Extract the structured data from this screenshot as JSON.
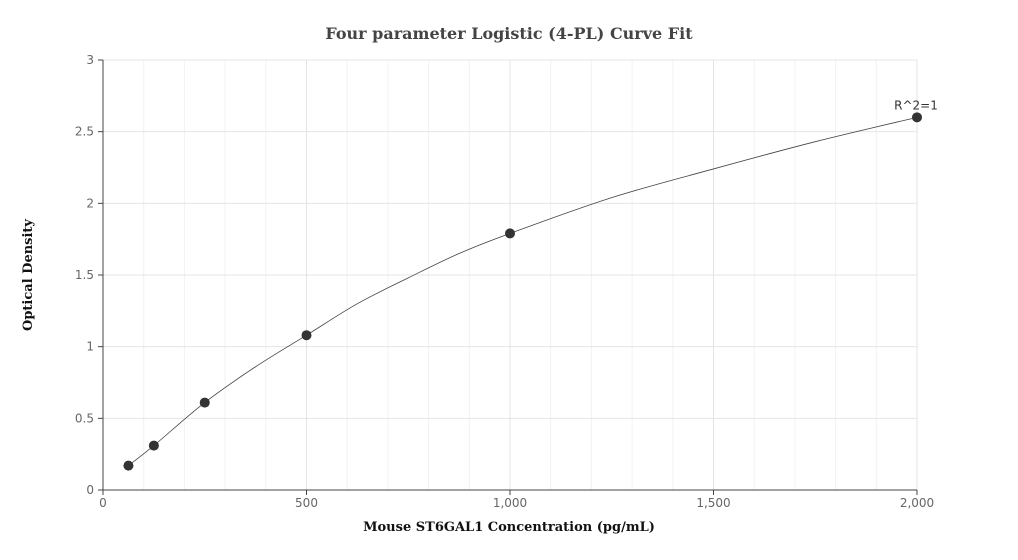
{
  "chart_data": {
    "type": "scatter",
    "title": "Four parameter Logistic (4-PL) Curve Fit",
    "xlabel": "Mouse ST6GAL1 Concentration (pg/mL)",
    "ylabel": "Optical Density",
    "xlim": [
      0,
      2000
    ],
    "ylim": [
      0,
      3
    ],
    "x_ticks": [
      0,
      500,
      1000,
      1500,
      2000
    ],
    "x_tick_labels": [
      "0",
      "500",
      "1,000",
      "1,500",
      "2,000"
    ],
    "y_ticks": [
      0,
      0.5,
      1,
      1.5,
      2,
      2.5,
      3
    ],
    "y_tick_labels": [
      "0",
      "0.5",
      "1",
      "1.5",
      "2",
      "2.5",
      "3"
    ],
    "grid": true,
    "points": [
      {
        "x": 62.5,
        "y": 0.17
      },
      {
        "x": 125,
        "y": 0.31
      },
      {
        "x": 250,
        "y": 0.61
      },
      {
        "x": 500,
        "y": 1.08
      },
      {
        "x": 1000,
        "y": 1.79
      },
      {
        "x": 2000,
        "y": 2.6
      }
    ],
    "fit_curve": {
      "x": [
        62.5,
        125,
        250,
        375,
        500,
        625,
        750,
        875,
        1000,
        1250,
        1500,
        1750,
        2000
      ],
      "y": [
        0.17,
        0.31,
        0.61,
        0.86,
        1.08,
        1.3,
        1.48,
        1.65,
        1.79,
        2.04,
        2.24,
        2.43,
        2.6
      ]
    },
    "annotation": "R^2=1"
  }
}
